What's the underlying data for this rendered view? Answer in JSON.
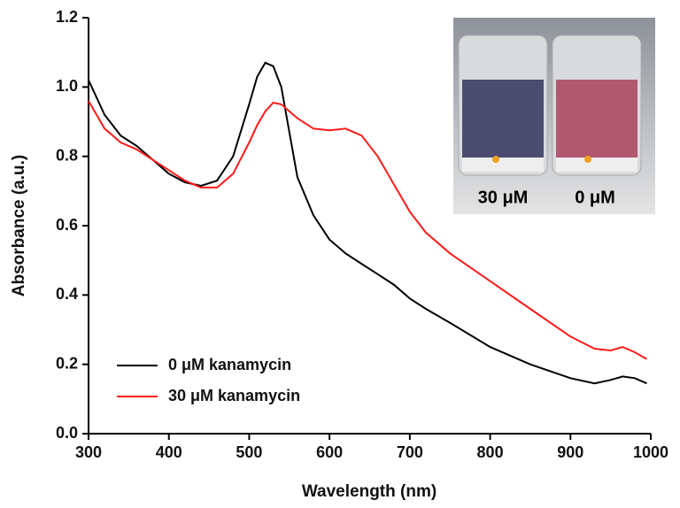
{
  "chart_data": {
    "type": "line",
    "xlabel": "Wavelength (nm)",
    "ylabel": "Absorbance (a.u.)",
    "x": [
      300,
      320,
      340,
      360,
      380,
      400,
      420,
      440,
      460,
      480,
      500,
      510,
      520,
      530,
      540,
      550,
      560,
      580,
      600,
      620,
      640,
      660,
      680,
      700,
      720,
      750,
      800,
      850,
      900,
      930,
      950,
      965,
      980,
      995
    ],
    "series": [
      {
        "name": "0 μM kanamycin",
        "color": "#000000",
        "values": [
          1.02,
          0.92,
          0.86,
          0.83,
          0.79,
          0.75,
          0.725,
          0.715,
          0.73,
          0.8,
          0.95,
          1.03,
          1.07,
          1.06,
          1.0,
          0.87,
          0.74,
          0.63,
          0.56,
          0.52,
          0.49,
          0.46,
          0.43,
          0.39,
          0.36,
          0.32,
          0.25,
          0.2,
          0.16,
          0.145,
          0.155,
          0.165,
          0.16,
          0.145
        ]
      },
      {
        "name": "30 μM kanamycin",
        "color": "#ff1a1a",
        "values": [
          0.96,
          0.88,
          0.84,
          0.82,
          0.79,
          0.76,
          0.73,
          0.71,
          0.71,
          0.75,
          0.84,
          0.89,
          0.93,
          0.955,
          0.95,
          0.93,
          0.91,
          0.88,
          0.875,
          0.88,
          0.86,
          0.8,
          0.72,
          0.64,
          0.58,
          0.52,
          0.44,
          0.36,
          0.28,
          0.245,
          0.24,
          0.25,
          0.235,
          0.215
        ]
      }
    ],
    "xlim": [
      300,
      1000
    ],
    "xticks": [
      300,
      400,
      500,
      600,
      700,
      800,
      900,
      1000
    ],
    "ylim": [
      0,
      1.2
    ],
    "yticks": [
      {
        "value": 0,
        "label": "0.0"
      },
      0.2,
      0.4,
      0.6,
      0.8,
      {
        "value": 1,
        "label": "1.0"
      },
      1.2
    ],
    "legend": "lower left",
    "annotations": [
      "30 μM",
      "0 μM"
    ]
  }
}
